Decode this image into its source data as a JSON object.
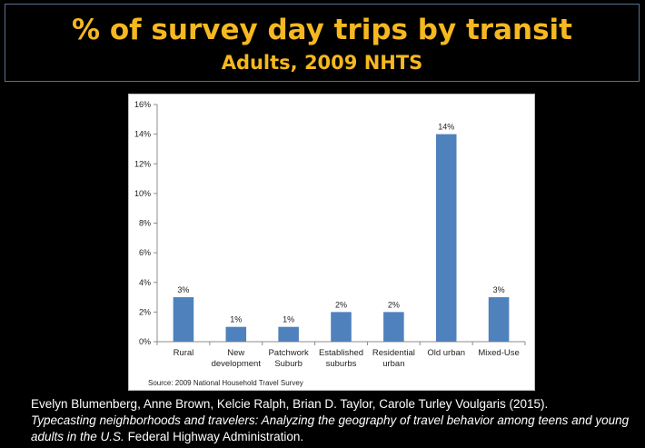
{
  "slide": {
    "title": "% of survey day trips by transit",
    "subtitle": "Adults, 2009 NHTS"
  },
  "citation": {
    "authors": "Evelyn Blumenberg, Anne Brown, Kelcie Ralph, Brian D. Taylor, Carole Turley Voulgaris (2015).",
    "work_title": "Typecasting neighborhoods and travelers: Analyzing the geography of travel behavior among teens and young adults in the U.S.",
    "publisher": " Federal Highway Administration."
  },
  "chart_data": {
    "type": "bar",
    "categories": [
      "Rural",
      "New development",
      "Patchwork Suburb",
      "Established suburbs",
      "Residential urban",
      "Old urban",
      "Mixed-Use"
    ],
    "category_lines": [
      [
        "Rural"
      ],
      [
        "New",
        "development"
      ],
      [
        "Patchwork",
        "Suburb"
      ],
      [
        "Established",
        "suburbs"
      ],
      [
        "Residential",
        "urban"
      ],
      [
        "Old urban"
      ],
      [
        "Mixed-Use"
      ]
    ],
    "values": [
      3,
      1,
      1,
      2,
      2,
      14,
      3
    ],
    "data_labels": [
      "3%",
      "1%",
      "1%",
      "2%",
      "2%",
      "14%",
      "3%"
    ],
    "yticks": [
      "0%",
      "2%",
      "4%",
      "6%",
      "8%",
      "10%",
      "12%",
      "14%",
      "16%"
    ],
    "ylim": [
      0,
      16
    ],
    "source": "Source:  2009 National Household Travel Survey",
    "bar_color": "#4f81bd",
    "grid": false
  }
}
